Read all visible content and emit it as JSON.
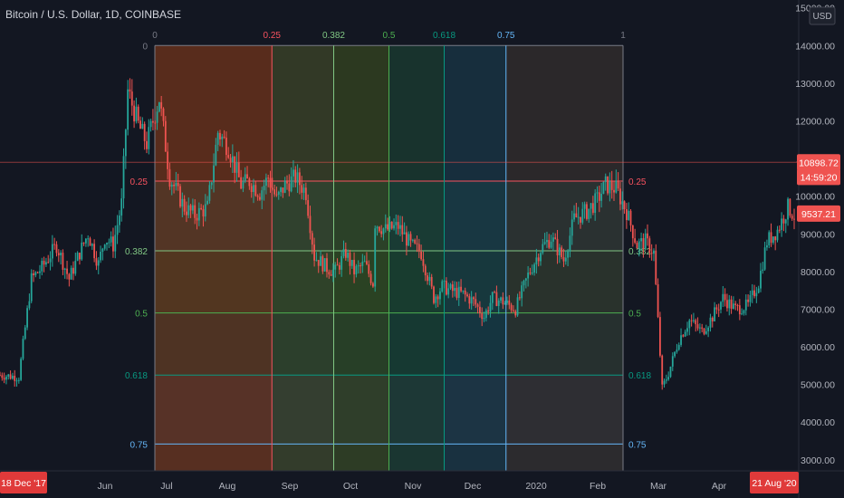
{
  "header": {
    "title": "Bitcoin / U.S. Dollar, 1D, COINBASE"
  },
  "colors": {
    "background": "#131722",
    "up": "#26a69a",
    "down": "#ef5350",
    "axis_text": "#b2b5be",
    "fib_0": "#787b86",
    "fib_0.25": "#f7525f",
    "fib_0.382": "#81c784",
    "fib_0.5": "#4caf50",
    "fib_0.618": "#089981",
    "fib_0.75": "#64b5f6",
    "fib_1": "#787b86"
  },
  "chart_data": {
    "type": "candlestick",
    "symbol": "Bitcoin / U.S. Dollar",
    "interval": "1D",
    "exchange": "COINBASE",
    "currency_badge": "USD",
    "ylim": [
      2900,
      15100
    ],
    "y_ticks": [
      "15000.00",
      "14000.00",
      "13000.00",
      "12000.00",
      "11000.00",
      "10000.00",
      "9000.00",
      "8000.00",
      "7000.00",
      "6000.00",
      "5000.00",
      "4000.00",
      "3000.00"
    ],
    "x_ticks": [
      "Jun",
      "Jul",
      "Aug",
      "Sep",
      "Oct",
      "Nov",
      "Dec",
      "2020",
      "Feb",
      "Mar",
      "Apr"
    ],
    "x_edge_labels": {
      "left": "18 Dec '17",
      "right": "21 Aug '20"
    },
    "price_labels": [
      {
        "value": 10898.72,
        "text": "10898.72"
      },
      {
        "value": 10510,
        "text": "14:59:20"
      },
      {
        "value": 9537.21,
        "text": "9537.21"
      }
    ],
    "fib_time_levels": [
      "0",
      "0.25",
      "0.382",
      "0.5",
      "0.618",
      "0.75",
      "1"
    ],
    "fib_price_levels": [
      "0",
      "0.25",
      "0.382",
      "0.5",
      "0.618",
      "0.75"
    ],
    "fib_price_values": [
      14000,
      10400,
      8550,
      6900,
      5250,
      3420
    ],
    "price_path": [
      {
        "date": "2019-05-01",
        "price": 5250
      },
      {
        "date": "2019-05-10",
        "price": 5200
      },
      {
        "date": "2019-05-16",
        "price": 7800
      },
      {
        "date": "2019-05-21",
        "price": 8100
      },
      {
        "date": "2019-05-28",
        "price": 8700
      },
      {
        "date": "2019-06-03",
        "price": 7800
      },
      {
        "date": "2019-06-08",
        "price": 8500
      },
      {
        "date": "2019-06-12",
        "price": 9000
      },
      {
        "date": "2019-06-17",
        "price": 8200
      },
      {
        "date": "2019-06-20",
        "price": 8900
      },
      {
        "date": "2019-06-24",
        "price": 8700
      },
      {
        "date": "2019-06-28",
        "price": 9800
      },
      {
        "date": "2019-07-01",
        "price": 12800
      },
      {
        "date": "2019-07-06",
        "price": 11900
      },
      {
        "date": "2019-07-10",
        "price": 11400
      },
      {
        "date": "2019-07-16",
        "price": 12600
      },
      {
        "date": "2019-07-21",
        "price": 10500
      },
      {
        "date": "2019-07-28",
        "price": 9700
      },
      {
        "date": "2019-08-02",
        "price": 9500
      },
      {
        "date": "2019-08-08",
        "price": 9700
      },
      {
        "date": "2019-08-13",
        "price": 11700
      },
      {
        "date": "2019-08-18",
        "price": 11300
      },
      {
        "date": "2019-08-24",
        "price": 10300
      },
      {
        "date": "2019-08-28",
        "price": 10400
      },
      {
        "date": "2019-09-02",
        "price": 10100
      },
      {
        "date": "2019-09-06",
        "price": 10500
      },
      {
        "date": "2019-09-10",
        "price": 9900
      },
      {
        "date": "2019-09-14",
        "price": 10300
      },
      {
        "date": "2019-09-19",
        "price": 10500
      },
      {
        "date": "2019-09-24",
        "price": 10100
      },
      {
        "date": "2019-09-28",
        "price": 8400
      },
      {
        "date": "2019-10-04",
        "price": 8100
      },
      {
        "date": "2019-10-08",
        "price": 8000
      },
      {
        "date": "2019-10-13",
        "price": 8500
      },
      {
        "date": "2019-10-17",
        "price": 8000
      },
      {
        "date": "2019-10-22",
        "price": 8200
      },
      {
        "date": "2019-10-26",
        "price": 7700
      },
      {
        "date": "2019-10-27",
        "price": 9300
      },
      {
        "date": "2019-11-01",
        "price": 9100
      },
      {
        "date": "2019-11-07",
        "price": 9200
      },
      {
        "date": "2019-11-13",
        "price": 8700
      },
      {
        "date": "2019-11-18",
        "price": 8500
      },
      {
        "date": "2019-11-24",
        "price": 7300
      },
      {
        "date": "2019-11-28",
        "price": 7600
      },
      {
        "date": "2019-12-02",
        "price": 7500
      },
      {
        "date": "2019-12-08",
        "price": 7400
      },
      {
        "date": "2019-12-13",
        "price": 7200
      },
      {
        "date": "2019-12-18",
        "price": 6800
      },
      {
        "date": "2019-12-22",
        "price": 7300
      },
      {
        "date": "2019-12-27",
        "price": 7200
      },
      {
        "date": "2020-01-02",
        "price": 7000
      },
      {
        "date": "2020-01-08",
        "price": 7900
      },
      {
        "date": "2020-01-14",
        "price": 8600
      },
      {
        "date": "2020-01-19",
        "price": 8900
      },
      {
        "date": "2020-01-25",
        "price": 8300
      },
      {
        "date": "2020-01-30",
        "price": 9400
      },
      {
        "date": "2020-02-05",
        "price": 9600
      },
      {
        "date": "2020-02-10",
        "price": 9900
      },
      {
        "date": "2020-02-14",
        "price": 10300
      },
      {
        "date": "2020-02-19",
        "price": 10200
      },
      {
        "date": "2020-02-24",
        "price": 9600
      },
      {
        "date": "2020-02-29",
        "price": 8700
      },
      {
        "date": "2020-03-04",
        "price": 8800
      },
      {
        "date": "2020-03-08",
        "price": 8500
      },
      {
        "date": "2020-03-12",
        "price": 4900
      },
      {
        "date": "2020-03-15",
        "price": 5300
      },
      {
        "date": "2020-03-20",
        "price": 6200
      },
      {
        "date": "2020-03-25",
        "price": 6700
      },
      {
        "date": "2020-03-31",
        "price": 6400
      },
      {
        "date": "2020-04-05",
        "price": 6800
      },
      {
        "date": "2020-04-10",
        "price": 7300
      },
      {
        "date": "2020-04-16",
        "price": 7000
      },
      {
        "date": "2020-04-22",
        "price": 7100
      },
      {
        "date": "2020-04-27",
        "price": 7700
      },
      {
        "date": "2020-05-01",
        "price": 8800
      },
      {
        "date": "2020-05-06",
        "price": 9100
      },
      {
        "date": "2020-05-11",
        "price": 9700
      },
      {
        "date": "2020-05-14",
        "price": 9500
      }
    ]
  }
}
